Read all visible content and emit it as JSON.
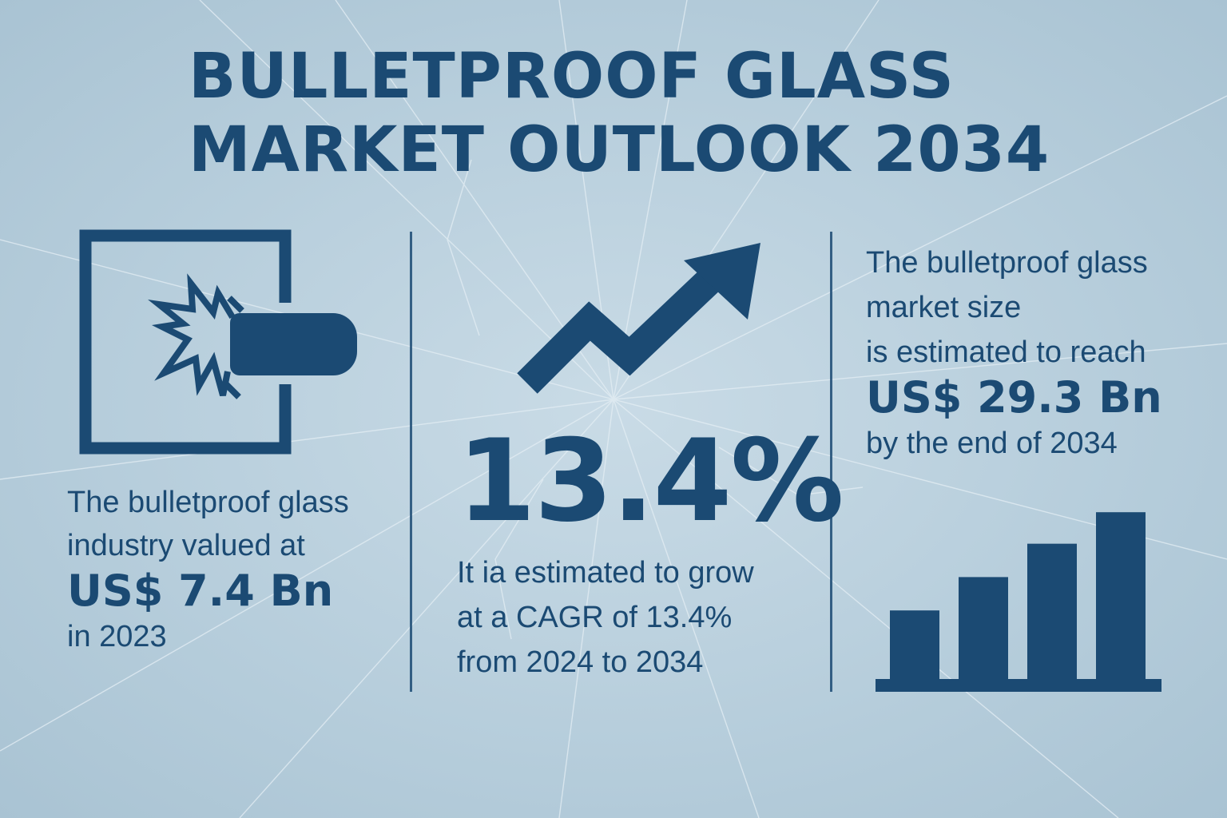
{
  "title": {
    "line1": "BULLETPROOF GLASS",
    "line2": "MARKET OUTLOOK 2034"
  },
  "colors": {
    "primary": "#1b4a73",
    "background": "#b7cedc"
  },
  "left": {
    "icon": "bullet-impact-icon",
    "line1": "The bulletproof glass",
    "line2": "industry valued at",
    "value": "US$ 7.4 Bn",
    "line3": "in 2023"
  },
  "middle": {
    "icon": "trend-up-arrow-icon",
    "percent": "13.4%",
    "line1": "It ia estimated to grow",
    "line2": "at a CAGR of 13.4%",
    "line3": "from 2024 to 2034"
  },
  "right": {
    "line1": "The bulletproof glass",
    "line2": "market size",
    "line3": "is estimated to reach",
    "value": "US$ 29.3 Bn",
    "line4": "by the end of 2034",
    "icon": "bar-chart-icon",
    "bar_levels": [
      0.37,
      0.55,
      0.73,
      0.9
    ]
  }
}
